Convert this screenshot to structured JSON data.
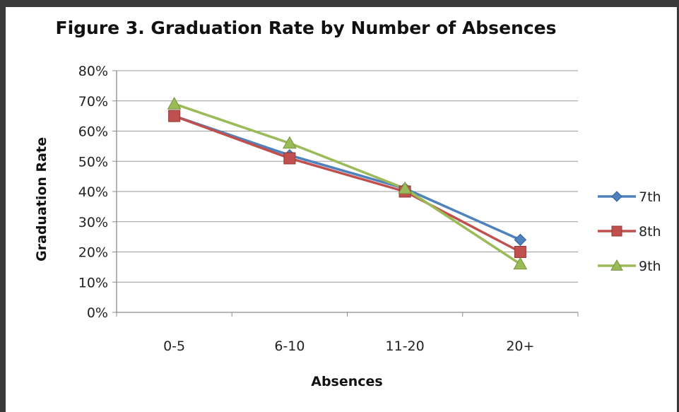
{
  "chart_data": {
    "type": "line",
    "title": "Figure 3. Graduation Rate by Number of Absences",
    "xlabel": "Absences",
    "ylabel": "Graduation Rate",
    "categories": [
      "0-5",
      "6-10",
      "11-20",
      "20+"
    ],
    "ylim": [
      0,
      80
    ],
    "yticks": [
      0,
      10,
      20,
      30,
      40,
      50,
      60,
      70,
      80
    ],
    "ytick_labels": [
      "0%",
      "10%",
      "20%",
      "30%",
      "40%",
      "50%",
      "60%",
      "70%",
      "80%"
    ],
    "grid": true,
    "legend_position": "right",
    "series": [
      {
        "name": "7th",
        "values": [
          65,
          52,
          41,
          24
        ],
        "color": "#4f81bd",
        "marker": "diamond"
      },
      {
        "name": "8th",
        "values": [
          65,
          51,
          40,
          20
        ],
        "color": "#c0504d",
        "marker": "square"
      },
      {
        "name": "9th",
        "values": [
          69,
          56,
          41,
          16
        ],
        "color": "#9bbb59",
        "marker": "triangle"
      }
    ]
  }
}
